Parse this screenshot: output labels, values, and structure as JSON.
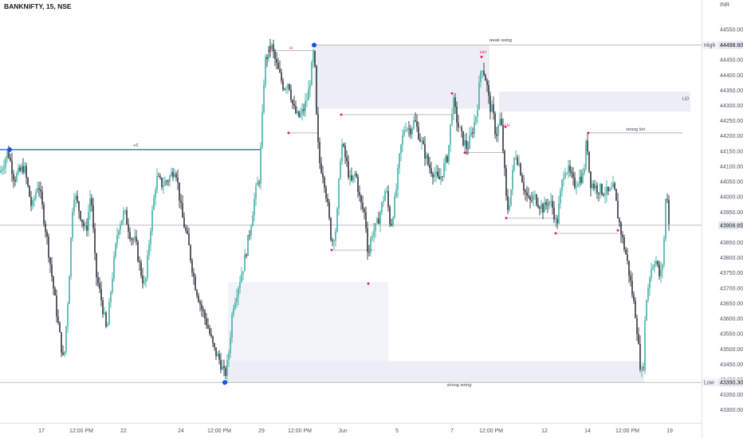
{
  "header": {
    "symbol_title": "BANKNIFTY, 15, NSE",
    "currency": "INR"
  },
  "colors": {
    "bull": "#26a69a",
    "bear": "#131722",
    "level_line": "#9598a1",
    "blue_line": "#1e53e5",
    "marker": "#e91e63",
    "zone_fill": "#e6e7f1",
    "zone_fill_light": "#f1f2f8",
    "axis_text": "#50535e"
  },
  "chart_data": {
    "type": "candlestick",
    "title": "BANKNIFTY, 15, NSE",
    "y_axis": {
      "position": "right",
      "ylim": [
        43260,
        44610
      ],
      "ticks": [
        43300,
        43350,
        43400,
        43450,
        43500,
        43550,
        43600,
        43650,
        43700,
        43750,
        43800,
        43850,
        43900,
        43950,
        44000,
        44050,
        44100,
        44150,
        44200,
        44250,
        44300,
        44350,
        44400,
        44450,
        44500,
        44550
      ],
      "tick_labels": [
        "43300.00",
        "43350.00",
        "43400.00",
        "43450.00",
        "43500.00",
        "43550.00",
        "43600.00",
        "43650.00",
        "43700.00",
        "43750.00",
        "43800.00",
        "43850.00",
        "43900.00",
        "43950.00",
        "44000.00",
        "44050.00",
        "44100.00",
        "44150.00",
        "44200.00",
        "44250.00",
        "44300.00",
        "44350.00",
        "44400.00",
        "44450.00",
        "44500.00",
        "44550.00"
      ],
      "unit": "INR"
    },
    "x_axis": {
      "range": [
        0,
        880
      ],
      "ticks": [
        52,
        102,
        155,
        227,
        275,
        328,
        376,
        430,
        498,
        567,
        616,
        683,
        737,
        787,
        840
      ],
      "tick_labels": [
        "17",
        "12:00 PM",
        "22",
        "24",
        "12:00 PM",
        "29",
        "12:00 PM",
        "Jun",
        "5",
        "7",
        "12:00 PM",
        "12",
        "14",
        "12:00 PM",
        "19"
      ]
    },
    "price_path": [
      [
        0,
        44080
      ],
      [
        10,
        44150
      ],
      [
        18,
        44060
      ],
      [
        30,
        44100
      ],
      [
        40,
        43960
      ],
      [
        48,
        44050
      ],
      [
        58,
        43880
      ],
      [
        66,
        43720
      ],
      [
        74,
        43560
      ],
      [
        80,
        43450
      ],
      [
        86,
        43700
      ],
      [
        92,
        44020
      ],
      [
        100,
        43950
      ],
      [
        108,
        43880
      ],
      [
        114,
        44020
      ],
      [
        120,
        43750
      ],
      [
        128,
        43650
      ],
      [
        134,
        43550
      ],
      [
        140,
        43720
      ],
      [
        148,
        43900
      ],
      [
        156,
        43950
      ],
      [
        164,
        43870
      ],
      [
        170,
        43850
      ],
      [
        176,
        43760
      ],
      [
        182,
        43700
      ],
      [
        188,
        43880
      ],
      [
        196,
        44060
      ],
      [
        204,
        44040
      ],
      [
        212,
        44060
      ],
      [
        220,
        44100
      ],
      [
        228,
        43940
      ],
      [
        236,
        43850
      ],
      [
        244,
        43720
      ],
      [
        252,
        43640
      ],
      [
        260,
        43580
      ],
      [
        268,
        43500
      ],
      [
        276,
        43460
      ],
      [
        282,
        43410
      ],
      [
        286,
        43460
      ],
      [
        292,
        43640
      ],
      [
        298,
        43700
      ],
      [
        306,
        43780
      ],
      [
        314,
        43900
      ],
      [
        320,
        44010
      ],
      [
        325,
        44060
      ],
      [
        328,
        44200
      ],
      [
        332,
        44440
      ],
      [
        340,
        44500
      ],
      [
        348,
        44420
      ],
      [
        356,
        44360
      ],
      [
        362,
        44380
      ],
      [
        368,
        44290
      ],
      [
        374,
        44260
      ],
      [
        380,
        44280
      ],
      [
        386,
        44330
      ],
      [
        390,
        44400
      ],
      [
        394,
        44490
      ],
      [
        397,
        44260
      ],
      [
        400,
        44120
      ],
      [
        406,
        44070
      ],
      [
        410,
        43990
      ],
      [
        416,
        43850
      ],
      [
        422,
        43900
      ],
      [
        428,
        44180
      ],
      [
        434,
        44120
      ],
      [
        440,
        44040
      ],
      [
        446,
        44080
      ],
      [
        452,
        43980
      ],
      [
        458,
        43940
      ],
      [
        462,
        43800
      ],
      [
        466,
        43880
      ],
      [
        472,
        43900
      ],
      [
        478,
        43960
      ],
      [
        484,
        44030
      ],
      [
        490,
        43900
      ],
      [
        496,
        44000
      ],
      [
        502,
        44150
      ],
      [
        508,
        44240
      ],
      [
        514,
        44220
      ],
      [
        520,
        44250
      ],
      [
        526,
        44200
      ],
      [
        532,
        44150
      ],
      [
        538,
        44100
      ],
      [
        544,
        44080
      ],
      [
        550,
        44050
      ],
      [
        556,
        44090
      ],
      [
        562,
        44140
      ],
      [
        568,
        44320
      ],
      [
        574,
        44240
      ],
      [
        580,
        44190
      ],
      [
        586,
        44160
      ],
      [
        592,
        44210
      ],
      [
        598,
        44280
      ],
      [
        604,
        44440
      ],
      [
        610,
        44380
      ],
      [
        614,
        44300
      ],
      [
        618,
        44280
      ],
      [
        622,
        44200
      ],
      [
        628,
        44260
      ],
      [
        632,
        44120
      ],
      [
        636,
        43950
      ],
      [
        640,
        44000
      ],
      [
        646,
        44150
      ],
      [
        652,
        44100
      ],
      [
        658,
        44020
      ],
      [
        664,
        43980
      ],
      [
        670,
        44000
      ],
      [
        676,
        43980
      ],
      [
        682,
        43960
      ],
      [
        688,
        43990
      ],
      [
        694,
        43960
      ],
      [
        698,
        43900
      ],
      [
        702,
        43990
      ],
      [
        708,
        44100
      ],
      [
        714,
        44080
      ],
      [
        720,
        44040
      ],
      [
        726,
        44060
      ],
      [
        732,
        44070
      ],
      [
        736,
        44200
      ],
      [
        740,
        44050
      ],
      [
        748,
        44030
      ],
      [
        756,
        44020
      ],
      [
        764,
        44010
      ],
      [
        770,
        44030
      ],
      [
        775,
        43940
      ],
      [
        780,
        43870
      ],
      [
        786,
        43800
      ],
      [
        792,
        43700
      ],
      [
        798,
        43600
      ],
      [
        802,
        43470
      ],
      [
        806,
        43400
      ],
      [
        810,
        43650
      ],
      [
        816,
        43760
      ],
      [
        822,
        43800
      ],
      [
        828,
        43730
      ],
      [
        832,
        43800
      ],
      [
        836,
        44050
      ],
      [
        839,
        43910
      ]
    ],
    "zones": [
      {
        "label": "weak swing",
        "x": [
          394,
          614
        ],
        "y": [
          44430,
          44498
        ]
      },
      {
        "label": "",
        "x": [
          394,
          614
        ],
        "y": [
          44290,
          44430
        ]
      },
      {
        "label": "LID",
        "x": [
          626,
          866
        ],
        "y": [
          44280,
          44346
        ]
      },
      {
        "label": "",
        "x": [
          286,
          487
        ],
        "y": [
          43460,
          43720
        ]
      },
      {
        "label": "strong swing",
        "x": [
          286,
          808
        ],
        "y": [
          43390,
          43460
        ]
      }
    ],
    "levels": [
      {
        "name": "High",
        "label": "weak swing",
        "value": 44498.6,
        "x": [
          394,
          880
        ],
        "axis_label": "High",
        "axis_value": "44498.60"
      },
      {
        "name": "Low",
        "label": "strong swing",
        "value": 43390.3,
        "x": [
          0,
          880
        ],
        "axis_label": "Low",
        "axis_value": "43390.30"
      },
      {
        "name": "Last",
        "value": 43906.65,
        "x": [
          0,
          880
        ],
        "axis_value": "43906.65"
      },
      {
        "name": "blue",
        "label": "+5",
        "value": 44155,
        "x": [
          0,
          326
        ]
      },
      {
        "name": "strong",
        "label": "strong lint",
        "value": 44210,
        "x": [
          738,
          856
        ]
      }
    ],
    "markers": [
      {
        "x": 12,
        "y": 44155,
        "kind": "circle"
      },
      {
        "x": 394,
        "y": 44498.6,
        "kind": "circle"
      },
      {
        "x": 282,
        "y": 43390.3,
        "kind": "circle"
      },
      {
        "x": 338,
        "y": 44480,
        "kind": "dot"
      },
      {
        "x": 362,
        "y": 44210,
        "kind": "dot"
      },
      {
        "x": 428,
        "y": 44270,
        "kind": "dot"
      },
      {
        "x": 416,
        "y": 43825,
        "kind": "dot"
      },
      {
        "x": 462,
        "y": 43715,
        "kind": "dot"
      },
      {
        "x": 567,
        "y": 44340,
        "kind": "dot"
      },
      {
        "x": 604,
        "y": 44460,
        "kind": "dot"
      },
      {
        "x": 583,
        "y": 44145,
        "kind": "dot"
      },
      {
        "x": 634,
        "y": 44230,
        "kind": "dot"
      },
      {
        "x": 635,
        "y": 43930,
        "kind": "dot"
      },
      {
        "x": 697,
        "y": 43880,
        "kind": "dot"
      },
      {
        "x": 738,
        "y": 44210,
        "kind": "dot"
      },
      {
        "x": 775,
        "y": 43890,
        "kind": "dot"
      }
    ],
    "annotations": [
      {
        "text": "weak swing",
        "x": 628,
        "y": 44510
      },
      {
        "text": "strong swing",
        "x": 576,
        "y": 43378
      },
      {
        "text": "+5",
        "x": 170,
        "y": 44165
      },
      {
        "text": "LID",
        "x": 860,
        "y": 44318
      },
      {
        "text": "strong lint",
        "x": 797,
        "y": 44218
      },
      {
        "text": "HH",
        "x": 606,
        "y": 44470
      },
      {
        "text": "H",
        "x": 365,
        "y": 44485
      },
      {
        "text": "LH",
        "x": 636,
        "y": 44230
      },
      {
        "text": "D",
        "x": 808,
        "y": 43430
      }
    ],
    "grid": false,
    "legend": "none"
  }
}
